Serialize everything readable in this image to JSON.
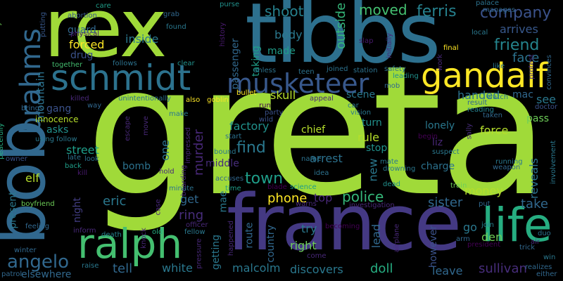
{
  "words": [
    {
      "text": "greta",
      "color": "#a0da39"
    },
    {
      "text": "rex",
      "color": "#a0da39"
    },
    {
      "text": "tibbs",
      "color": "#2d708e"
    },
    {
      "text": "france",
      "color": "#443983"
    },
    {
      "text": "bob",
      "color": "#31688e"
    },
    {
      "text": "brahms",
      "color": "#31688e"
    },
    {
      "text": "schmidt",
      "color": "#2c728e"
    },
    {
      "text": "musketeer",
      "color": "#38588c"
    },
    {
      "text": "gandalf",
      "color": "#fde725"
    },
    {
      "text": "ralph",
      "color": "#44bf70"
    },
    {
      "text": "life",
      "color": "#26ad81"
    },
    {
      "text": "angelo",
      "color": "#31688e"
    },
    {
      "text": "company",
      "color": "#3b528b"
    },
    {
      "text": "friend",
      "color": "#25858e"
    },
    {
      "text": "moved",
      "color": "#44bf70"
    },
    {
      "text": "ferris",
      "color": "#26818e"
    },
    {
      "text": "shoot",
      "color": "#26818e"
    },
    {
      "text": "outside",
      "color": "#35b779"
    },
    {
      "text": "arrives",
      "color": "#38588c"
    },
    {
      "text": "face",
      "color": "#2c728e"
    },
    {
      "text": "inside",
      "color": "#2a788e"
    },
    {
      "text": "forced",
      "color": "#fde725"
    },
    {
      "text": "drug",
      "color": "#3b528b"
    },
    {
      "text": "guard",
      "color": "#31688e"
    },
    {
      "text": "body",
      "color": "#2a788e"
    },
    {
      "text": "made",
      "color": "#1f9e89"
    },
    {
      "text": "taking",
      "color": "#1f9e89"
    },
    {
      "text": "passenger",
      "color": "#31688e"
    },
    {
      "text": "handed",
      "color": "#2c728e"
    },
    {
      "text": "mac",
      "color": "#31688e"
    },
    {
      "text": "see",
      "color": "#2a788e"
    },
    {
      "text": "mountain",
      "color": "#2c728e"
    },
    {
      "text": "gang",
      "color": "#3b528b"
    },
    {
      "text": "skull",
      "color": "#b5de2b"
    },
    {
      "text": "scene",
      "color": "#2a788e"
    },
    {
      "text": "pass",
      "color": "#6ece58"
    },
    {
      "text": "lonely",
      "color": "#2a788e"
    },
    {
      "text": "force",
      "color": "#b5de2b"
    },
    {
      "text": "asks",
      "color": "#21918c"
    },
    {
      "text": "factory",
      "color": "#21918c"
    },
    {
      "text": "chief",
      "color": "#b5de2b"
    },
    {
      "text": "turn",
      "color": "#21918c"
    },
    {
      "text": "rule",
      "color": "#b5de2b"
    },
    {
      "text": "liz",
      "color": "#482878"
    },
    {
      "text": "stop",
      "color": "#21918c"
    },
    {
      "text": "find",
      "color": "#2a788e"
    },
    {
      "text": "street",
      "color": "#1f9e89"
    },
    {
      "text": "murder",
      "color": "#482878"
    },
    {
      "text": "one",
      "color": "#2c728e"
    },
    {
      "text": "middle",
      "color": "#472d7b"
    },
    {
      "text": "arrest",
      "color": "#2c728e"
    },
    {
      "text": "new",
      "color": "#2a788e"
    },
    {
      "text": "charge",
      "color": "#2c728e"
    },
    {
      "text": "reveals",
      "color": "#2c728e"
    },
    {
      "text": "town",
      "color": "#1f9e89"
    },
    {
      "text": "bomb",
      "color": "#2c728e"
    },
    {
      "text": "elf",
      "color": "#b5de2b"
    },
    {
      "text": "police",
      "color": "#35b779"
    },
    {
      "text": "sister",
      "color": "#31688e"
    },
    {
      "text": "money",
      "color": "#b5de2b"
    },
    {
      "text": "get",
      "color": "#31688e"
    },
    {
      "text": "eric",
      "color": "#2a788e"
    },
    {
      "text": "phone",
      "color": "#fde725"
    },
    {
      "text": "top",
      "color": "#482878"
    },
    {
      "text": "ring",
      "color": "#472d7b"
    },
    {
      "text": "take",
      "color": "#31688e"
    },
    {
      "text": "mae",
      "color": "#2a788e"
    },
    {
      "text": "route",
      "color": "#31688e"
    },
    {
      "text": "country",
      "color": "#31688e"
    },
    {
      "text": "lead",
      "color": "#31688e"
    },
    {
      "text": "try",
      "color": "#2a788e"
    },
    {
      "text": "go",
      "color": "#2a788e"
    },
    {
      "text": "den",
      "color": "#6ece58"
    },
    {
      "text": "right",
      "color": "#6ece58"
    },
    {
      "text": "however",
      "color": "#3b528b"
    },
    {
      "text": "tell",
      "color": "#31688e"
    },
    {
      "text": "getting",
      "color": "#2a788e"
    },
    {
      "text": "malcolm",
      "color": "#2a788e"
    },
    {
      "text": "discovers",
      "color": "#2a788e"
    },
    {
      "text": "doll",
      "color": "#26ad81"
    },
    {
      "text": "leave",
      "color": "#31688e"
    },
    {
      "text": "sullivan",
      "color": "#472d7b"
    },
    {
      "text": "white",
      "color": "#2a788e"
    },
    {
      "text": "elsewhere",
      "color": "#31688e"
    },
    {
      "text": "night",
      "color": "#433e85"
    },
    {
      "text": "present",
      "color": "#2a788e"
    },
    {
      "text": "eventually",
      "color": "#6ece58"
    },
    {
      "text": "found",
      "color": "#2a788e"
    },
    {
      "text": "grab",
      "color": "#31688e"
    },
    {
      "text": "care",
      "color": "#1f9e89"
    },
    {
      "text": "abortion",
      "color": "#38588c"
    },
    {
      "text": "putting",
      "color": "#38588c"
    },
    {
      "text": "physical",
      "color": "#481a6c"
    },
    {
      "text": "together",
      "color": "#44bf70"
    },
    {
      "text": "follows",
      "color": "#2c728e"
    },
    {
      "text": "clear",
      "color": "#21918c"
    },
    {
      "text": "purse",
      "color": "#21918c"
    },
    {
      "text": "history",
      "color": "#481a6c"
    },
    {
      "text": "palace",
      "color": "#2c728e"
    },
    {
      "text": "manages",
      "color": "#31688e"
    },
    {
      "text": "local",
      "color": "#2a788e"
    },
    {
      "text": "slap",
      "color": "#481a6c"
    },
    {
      "text": "initially",
      "color": "#482878"
    },
    {
      "text": "final",
      "color": "#fde725"
    },
    {
      "text": "work",
      "color": "#482878"
    },
    {
      "text": "protest",
      "color": "#472d7b"
    },
    {
      "text": "convinces",
      "color": "#31688e"
    },
    {
      "text": "like",
      "color": "#2a788e"
    },
    {
      "text": "unless",
      "color": "#2c728e"
    },
    {
      "text": "teen",
      "color": "#2c728e"
    },
    {
      "text": "joined",
      "color": "#2c728e"
    },
    {
      "text": "station",
      "color": "#2c728e"
    },
    {
      "text": "safety",
      "color": "#2c728e"
    },
    {
      "text": "leading",
      "color": "#21918c"
    },
    {
      "text": "mob",
      "color": "#31688e"
    },
    {
      "text": "bullet",
      "color": "#fde725"
    },
    {
      "text": "goblin",
      "color": "#fde725"
    },
    {
      "text": "also",
      "color": "#fde725"
    },
    {
      "text": "killed",
      "color": "#482878"
    },
    {
      "text": "way",
      "color": "#31688e"
    },
    {
      "text": "unintentionally",
      "color": "#2c728e"
    },
    {
      "text": "brings",
      "color": "#31688e"
    },
    {
      "text": "peacefully",
      "color": "#26ad81"
    },
    {
      "text": "innocence",
      "color": "#b5de2b"
    },
    {
      "text": "make",
      "color": "#2a788e"
    },
    {
      "text": "run",
      "color": "#440154"
    },
    {
      "text": "party",
      "color": "#3b528b"
    },
    {
      "text": "wild",
      "color": "#3b528b"
    },
    {
      "text": "start",
      "color": "#2c728e"
    },
    {
      "text": "appeal",
      "color": "#482878"
    },
    {
      "text": "car",
      "color": "#2a788e"
    },
    {
      "text": "vision",
      "color": "#2a788e"
    },
    {
      "text": "result",
      "color": "#31688e"
    },
    {
      "text": "reading",
      "color": "#26818e"
    },
    {
      "text": "watch",
      "color": "#2a788e"
    },
    {
      "text": "taken",
      "color": "#31688e"
    },
    {
      "text": "doctor",
      "color": "#3b528b"
    },
    {
      "text": "escape",
      "color": "#482878"
    },
    {
      "text": "move",
      "color": "#482878"
    },
    {
      "text": "impressed",
      "color": "#482878"
    },
    {
      "text": "boarding",
      "color": "#482878"
    },
    {
      "text": "using",
      "color": "#2a788e"
    },
    {
      "text": "follow",
      "color": "#2a788e"
    },
    {
      "text": "owner",
      "color": "#3b528b"
    },
    {
      "text": "back",
      "color": "#1f9e89"
    },
    {
      "text": "kill",
      "color": "#481a6c"
    },
    {
      "text": "late",
      "color": "#2c728e"
    },
    {
      "text": "look",
      "color": "#2c728e"
    },
    {
      "text": "hold",
      "color": "#482878"
    },
    {
      "text": "minute",
      "color": "#2c728e"
    },
    {
      "text": "begin",
      "color": "#440154"
    },
    {
      "text": "suspect",
      "color": "#2a788e"
    },
    {
      "text": "sally",
      "color": "#472d7b"
    },
    {
      "text": "running",
      "color": "#2a788e"
    },
    {
      "text": "weapon",
      "color": "#31688e"
    },
    {
      "text": "involvement",
      "color": "#2a788e"
    },
    {
      "text": "bound",
      "color": "#2a788e"
    },
    {
      "text": "name",
      "color": "#2c728e"
    },
    {
      "text": "idea",
      "color": "#2c728e"
    },
    {
      "text": "mate",
      "color": "#2a788e"
    },
    {
      "text": "drowning",
      "color": "#2a788e"
    },
    {
      "text": "dead",
      "color": "#21918c"
    },
    {
      "text": "train",
      "color": "#6ece58"
    },
    {
      "text": "put",
      "color": "#31688e"
    },
    {
      "text": "warns",
      "color": "#482878"
    },
    {
      "text": "accuses",
      "color": "#31688e"
    },
    {
      "text": "time",
      "color": "#1f9e89"
    },
    {
      "text": "blade",
      "color": "#440154"
    },
    {
      "text": "science",
      "color": "#1f9e89"
    },
    {
      "text": "investigation",
      "color": "#482878"
    },
    {
      "text": "boyfriend",
      "color": "#6ece58"
    },
    {
      "text": "feeling",
      "color": "#31688e"
    },
    {
      "text": "officer",
      "color": "#482878"
    },
    {
      "text": "knock",
      "color": "#482878"
    },
    {
      "text": "old",
      "color": "#26ad81"
    },
    {
      "text": "fellow",
      "color": "#2a788e"
    },
    {
      "text": "pressure",
      "color": "#482878"
    },
    {
      "text": "inform",
      "color": "#482878"
    },
    {
      "text": "death",
      "color": "#26818e"
    },
    {
      "text": "becoming",
      "color": "#440154"
    },
    {
      "text": "happened",
      "color": "#482878"
    },
    {
      "text": "airplane",
      "color": "#482878"
    },
    {
      "text": "arm",
      "color": "#31688e"
    },
    {
      "text": "join",
      "color": "#26818e"
    },
    {
      "text": "president",
      "color": "#440154"
    },
    {
      "text": "duo",
      "color": "#2c728e"
    },
    {
      "text": "air",
      "color": "#482878"
    },
    {
      "text": "trick",
      "color": "#31688e"
    },
    {
      "text": "win",
      "color": "#2a788e"
    },
    {
      "text": "winter",
      "color": "#31688e"
    },
    {
      "text": "patrol",
      "color": "#31688e"
    },
    {
      "text": "raise",
      "color": "#2a788e"
    },
    {
      "text": "come",
      "color": "#482878"
    },
    {
      "text": "either",
      "color": "#31688e"
    },
    {
      "text": "realizes",
      "color": "#31688e"
    },
    {
      "text": "case",
      "color": "#482878"
    }
  ]
}
